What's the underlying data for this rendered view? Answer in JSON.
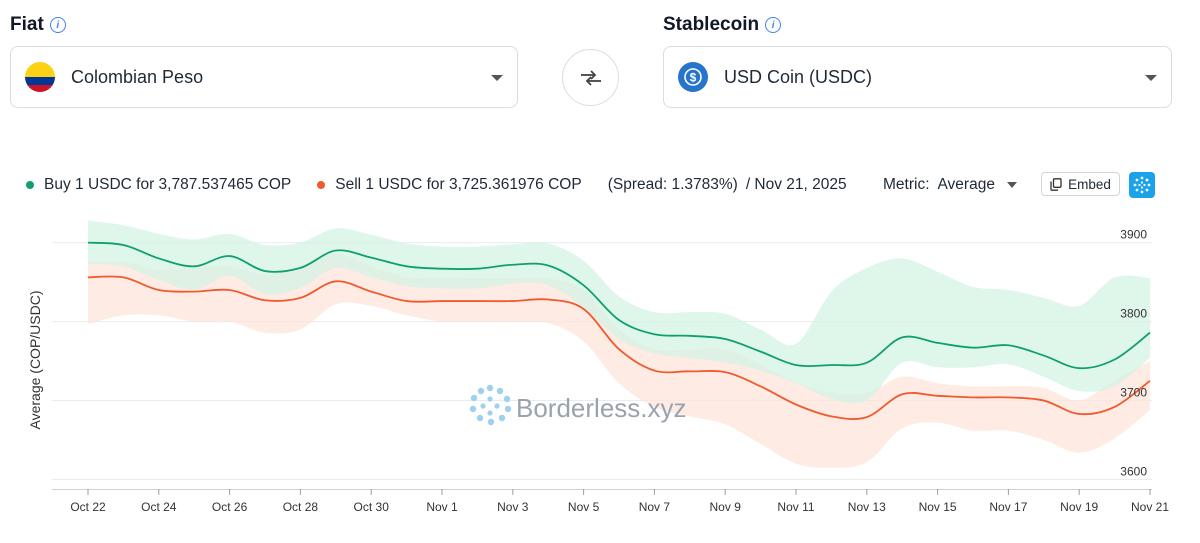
{
  "fiat": {
    "label": "Fiat",
    "selected": "Colombian Peso"
  },
  "stablecoin": {
    "label": "Stablecoin",
    "selected": "USD Coin (USDC)"
  },
  "legend": {
    "buy_text": "Buy 1 USDC for 3,787.537465 COP",
    "sell_text": "Sell 1 USDC for 3,725.361976 COP",
    "spread_text": "(Spread: 1.3783%)",
    "date_text": "/ Nov 21, 2025",
    "buy_color": "#10a070",
    "sell_color": "#f05a2e"
  },
  "metric": {
    "label": "Metric:",
    "value": "Average"
  },
  "embed_label": "Embed",
  "watermark": "Borderless.xyz",
  "chart_data": {
    "type": "line",
    "title": "",
    "xlabel": "",
    "ylabel": "Average (COP/USDC)",
    "ylim": [
      3588,
      3935
    ],
    "yticks": [
      3600,
      3700,
      3800,
      3900
    ],
    "xlim": [
      0,
      30
    ],
    "x_ticks": [
      {
        "day": 0,
        "label": "Oct 22"
      },
      {
        "day": 2,
        "label": "Oct 24"
      },
      {
        "day": 4,
        "label": "Oct 26"
      },
      {
        "day": 6,
        "label": "Oct 28"
      },
      {
        "day": 8,
        "label": "Oct 30"
      },
      {
        "day": 10,
        "label": "Nov 1"
      },
      {
        "day": 12,
        "label": "Nov 3"
      },
      {
        "day": 14,
        "label": "Nov 5"
      },
      {
        "day": 16,
        "label": "Nov 7"
      },
      {
        "day": 18,
        "label": "Nov 9"
      },
      {
        "day": 20,
        "label": "Nov 11"
      },
      {
        "day": 22,
        "label": "Nov 13"
      },
      {
        "day": 24,
        "label": "Nov 15"
      },
      {
        "day": 26,
        "label": "Nov 17"
      },
      {
        "day": 28,
        "label": "Nov 19"
      },
      {
        "day": 30,
        "label": "Nov 21"
      }
    ],
    "series": [
      {
        "name": "Buy",
        "color": "#10a070",
        "band_color": "#d3f2e3",
        "x": [
          0,
          1,
          2,
          3,
          4,
          5,
          6,
          7,
          8,
          9,
          10,
          11,
          12,
          13,
          14,
          15,
          16,
          17,
          18,
          19,
          20,
          21,
          22,
          23,
          24,
          25,
          26,
          27,
          28,
          29,
          30
        ],
        "values": [
          3900,
          3897,
          3880,
          3870,
          3883,
          3864,
          3868,
          3890,
          3881,
          3870,
          3867,
          3867,
          3872,
          3871,
          3846,
          3802,
          3784,
          3782,
          3778,
          3762,
          3745,
          3745,
          3748,
          3780,
          3773,
          3767,
          3770,
          3757,
          3741,
          3752,
          3786
        ],
        "upper": [
          3928,
          3922,
          3911,
          3904,
          3911,
          3897,
          3900,
          3918,
          3910,
          3899,
          3895,
          3895,
          3898,
          3899,
          3877,
          3832,
          3812,
          3812,
          3810,
          3790,
          3772,
          3838,
          3868,
          3880,
          3863,
          3844,
          3840,
          3830,
          3820,
          3856,
          3855
        ],
        "lower": [
          3873,
          3870,
          3853,
          3840,
          3858,
          3835,
          3843,
          3868,
          3856,
          3845,
          3842,
          3842,
          3848,
          3846,
          3818,
          3778,
          3760,
          3754,
          3748,
          3738,
          3722,
          3702,
          3700,
          3748,
          3742,
          3742,
          3746,
          3730,
          3712,
          3718,
          3754
        ]
      },
      {
        "name": "Sell",
        "color": "#f05a2e",
        "band_color": "#fde3da",
        "x": [
          0,
          1,
          2,
          3,
          4,
          5,
          6,
          7,
          8,
          9,
          10,
          11,
          12,
          13,
          14,
          15,
          16,
          17,
          18,
          19,
          20,
          21,
          22,
          23,
          24,
          25,
          26,
          27,
          28,
          29,
          30
        ],
        "values": [
          3856,
          3856,
          3840,
          3838,
          3840,
          3827,
          3830,
          3851,
          3838,
          3826,
          3826,
          3826,
          3826,
          3828,
          3816,
          3765,
          3738,
          3737,
          3736,
          3718,
          3695,
          3680,
          3679,
          3708,
          3706,
          3704,
          3704,
          3700,
          3683,
          3692,
          3725
        ],
        "upper": [
          3876,
          3876,
          3866,
          3868,
          3870,
          3860,
          3870,
          3886,
          3870,
          3856,
          3856,
          3855,
          3855,
          3855,
          3840,
          3790,
          3765,
          3765,
          3765,
          3745,
          3723,
          3710,
          3710,
          3730,
          3722,
          3718,
          3718,
          3716,
          3700,
          3726,
          3750
        ],
        "lower": [
          3797,
          3808,
          3808,
          3800,
          3800,
          3786,
          3790,
          3822,
          3820,
          3808,
          3800,
          3800,
          3800,
          3798,
          3775,
          3722,
          3692,
          3680,
          3670,
          3645,
          3620,
          3615,
          3622,
          3665,
          3672,
          3662,
          3662,
          3650,
          3634,
          3652,
          3688
        ]
      }
    ]
  }
}
